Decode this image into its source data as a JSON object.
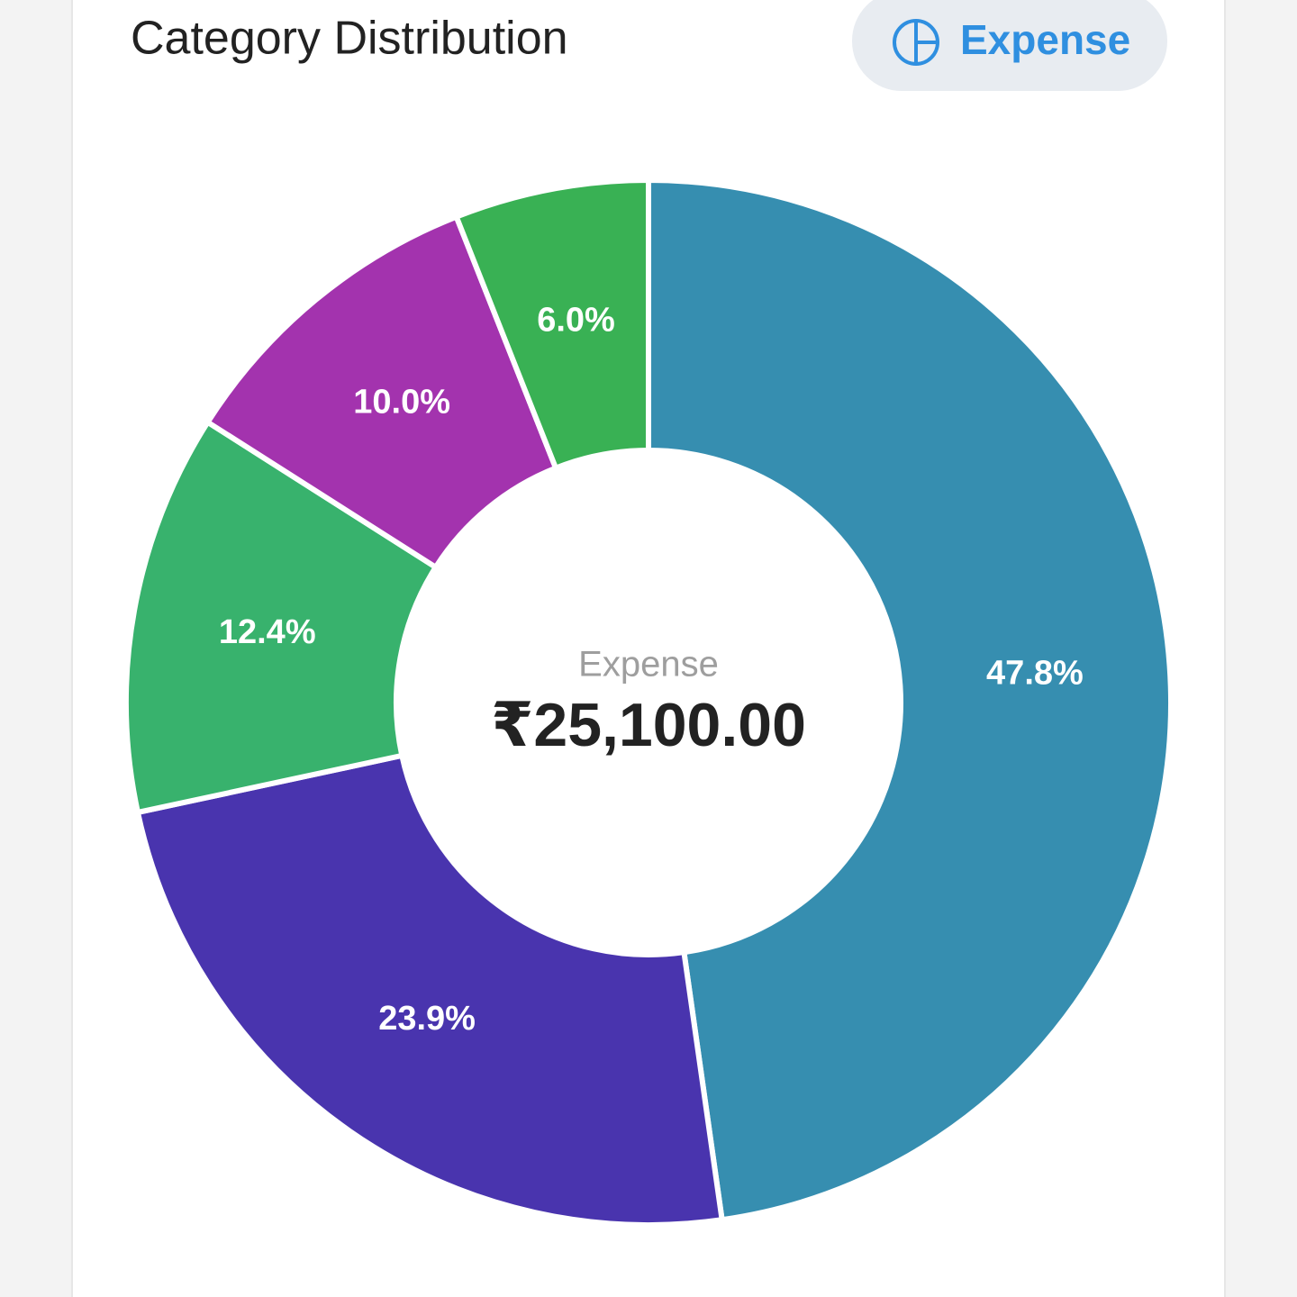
{
  "header": {
    "title": "Category Distribution",
    "toggle_label": "Expense"
  },
  "chart_data": {
    "type": "donut",
    "values": [
      47.8,
      23.9,
      12.4,
      10.0,
      6.0
    ],
    "value_labels": [
      "47.8%",
      "23.9%",
      "12.4%",
      "10.0%",
      "6.0%"
    ],
    "colors": [
      "#368eb0",
      "#4934ae",
      "#38b26d",
      "#a333ae",
      "#39b154"
    ],
    "center_label": "Expense",
    "center_value": "₹25,100.00"
  }
}
